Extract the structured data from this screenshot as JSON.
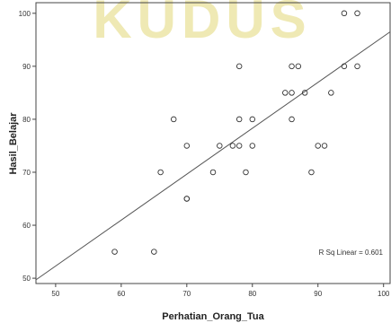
{
  "chart_data": {
    "type": "scatter",
    "title": "",
    "xlabel": "Perhatian_Orang_Tua",
    "ylabel": "Hasil_Belajar",
    "xlim": [
      47,
      101
    ],
    "ylim": [
      49,
      102
    ],
    "xticks": [
      50,
      60,
      70,
      80,
      90,
      100
    ],
    "yticks": [
      50,
      60,
      70,
      80,
      90,
      100
    ],
    "grid": false,
    "points": [
      {
        "x": 59,
        "y": 55
      },
      {
        "x": 65,
        "y": 55
      },
      {
        "x": 66,
        "y": 70
      },
      {
        "x": 68,
        "y": 80
      },
      {
        "x": 70,
        "y": 65
      },
      {
        "x": 70,
        "y": 65
      },
      {
        "x": 70,
        "y": 75
      },
      {
        "x": 74,
        "y": 70
      },
      {
        "x": 75,
        "y": 75
      },
      {
        "x": 77,
        "y": 75
      },
      {
        "x": 78,
        "y": 75
      },
      {
        "x": 78,
        "y": 80
      },
      {
        "x": 78,
        "y": 90
      },
      {
        "x": 79,
        "y": 70
      },
      {
        "x": 80,
        "y": 75
      },
      {
        "x": 80,
        "y": 80
      },
      {
        "x": 85,
        "y": 85
      },
      {
        "x": 86,
        "y": 85
      },
      {
        "x": 86,
        "y": 80
      },
      {
        "x": 86,
        "y": 90
      },
      {
        "x": 87,
        "y": 90
      },
      {
        "x": 88,
        "y": 85
      },
      {
        "x": 89,
        "y": 70
      },
      {
        "x": 90,
        "y": 75
      },
      {
        "x": 91,
        "y": 75
      },
      {
        "x": 92,
        "y": 85
      },
      {
        "x": 94,
        "y": 100
      },
      {
        "x": 94,
        "y": 90
      },
      {
        "x": 96,
        "y": 100
      },
      {
        "x": 96,
        "y": 90
      }
    ],
    "fit_line": {
      "from": [
        47,
        49.7
      ],
      "to": [
        101,
        96.5
      ]
    },
    "annotation": "R Sq Linear = 0.601",
    "watermark": "KUDUS"
  }
}
